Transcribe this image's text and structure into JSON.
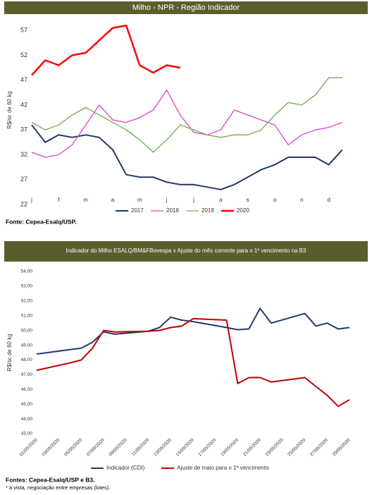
{
  "chart_data": [
    {
      "type": "line",
      "title": "Milho - NPR - Região Indicador",
      "y_label": "R$/sc de 60 kg",
      "categories": [
        "j",
        null,
        "f",
        null,
        "m",
        null,
        "a",
        null,
        "m",
        null,
        "j",
        null,
        "j",
        null,
        "a",
        null,
        "s",
        null,
        "o",
        null,
        "n",
        null,
        "d",
        null
      ],
      "series": [
        {
          "name": "2017",
          "color": "#1f3864",
          "values": [
            38,
            34.5,
            36,
            35.5,
            36,
            35.5,
            33,
            28,
            27.5,
            27.5,
            26.5,
            26,
            26,
            25.5,
            25,
            26,
            27.5,
            29,
            30,
            31.5,
            31.5,
            31.5,
            30,
            33
          ]
        },
        {
          "name": "2018",
          "color": "#e040d0",
          "values": [
            32.5,
            31.5,
            32,
            34,
            38,
            42,
            39,
            38.5,
            39.5,
            41,
            45,
            40,
            36.5,
            36,
            37,
            41,
            40,
            39,
            38,
            34,
            36,
            37,
            37.5,
            38.5
          ]
        },
        {
          "name": "2019",
          "color": "#70ad47",
          "values": [
            38.5,
            37,
            38,
            40,
            41.5,
            40,
            38.5,
            37,
            35,
            32.5,
            35,
            38,
            37,
            36,
            35.5,
            36,
            36,
            37,
            40,
            42.5,
            42,
            44,
            47.5,
            47.5
          ]
        },
        {
          "name": "2020",
          "color": "#ff0000",
          "values": [
            48,
            51,
            50,
            52,
            52.5,
            55,
            57.5,
            58,
            50,
            48.5,
            50,
            49.5,
            null,
            null,
            null,
            null,
            null,
            null,
            null,
            null,
            null,
            null,
            null,
            null
          ]
        }
      ],
      "ylim": [
        22,
        60
      ],
      "yticks": [
        22,
        27,
        32,
        37,
        42,
        47,
        52,
        57
      ],
      "legend": "bottom",
      "source": "Fonte: Cepea-Esalq/USP."
    },
    {
      "type": "line",
      "title": "Indicador do Milho ESALQ/BM&FBovespa x Ajuste do mês corrente para o 1º vencimento na B3",
      "y_label": "R$/sc de 60 kg",
      "x": [
        "01/05/2020",
        "04/05/2020",
        "05/05/2020",
        "06/05/2020",
        "07/05/2020",
        "08/05/2020",
        "11/05/2020",
        "12/05/2020",
        "13/05/2020",
        "14/05/2020",
        "15/05/2020",
        "18/05/2020",
        "19/05/2020",
        "20/05/2020",
        "21/05/2020",
        "22/05/2020",
        "25/05/2020",
        "26/05/2020",
        "27/05/2020",
        "28/05/2020",
        "29/05/2020"
      ],
      "xticks": [
        "01/05/2020",
        "03/05/2020",
        "05/05/2020",
        "07/05/2020",
        "09/05/2020",
        "11/05/2020",
        "13/05/2020",
        "15/05/2020",
        "17/05/2020",
        "19/05/2020",
        "21/05/2020",
        "23/05/2020",
        "25/05/2020",
        "27/05/2020",
        "29/05/2020"
      ],
      "series": [
        {
          "name": "Indicador (CDI)",
          "color": "#1f3a6e",
          "values": [
            48.4,
            48.7,
            48.8,
            49.2,
            49.9,
            49.75,
            49.95,
            50.2,
            50.9,
            50.7,
            50.6,
            50.2,
            50.05,
            50.1,
            51.5,
            50.5,
            51.15,
            50.3,
            50.5,
            50.1,
            50.2
          ]
        },
        {
          "name": "Ajuste de maio para o 1º vencimento",
          "color": "#c00000",
          "values": [
            47.3,
            47.8,
            48.0,
            48.8,
            50.0,
            49.9,
            49.95,
            50.0,
            50.2,
            50.3,
            50.8,
            50.7,
            46.4,
            46.8,
            46.8,
            46.5,
            46.8,
            46.2,
            45.6,
            44.85,
            45.3
          ]
        }
      ],
      "ylim": [
        43,
        54
      ],
      "yticks": [
        {
          "value": 43,
          "label": "43,00"
        },
        {
          "value": 44,
          "label": "44,00"
        },
        {
          "value": 45,
          "label": "45,00"
        },
        {
          "value": 46,
          "label": "46,00"
        },
        {
          "value": 47,
          "label": "47,00"
        },
        {
          "value": 48,
          "label": "48,00"
        },
        {
          "value": 49,
          "label": "49,00"
        },
        {
          "value": 50,
          "label": "50,00"
        },
        {
          "value": 51,
          "label": "51,00"
        },
        {
          "value": 52,
          "label": "52,00"
        },
        {
          "value": 53,
          "label": "53,00"
        },
        {
          "value": 54,
          "label": "54,00"
        }
      ],
      "legend": "bottom",
      "source": "Fontes: Cepea-Esalq/USP e B3.",
      "note": "* à vista, negociação entre empresas (lotes)."
    }
  ]
}
